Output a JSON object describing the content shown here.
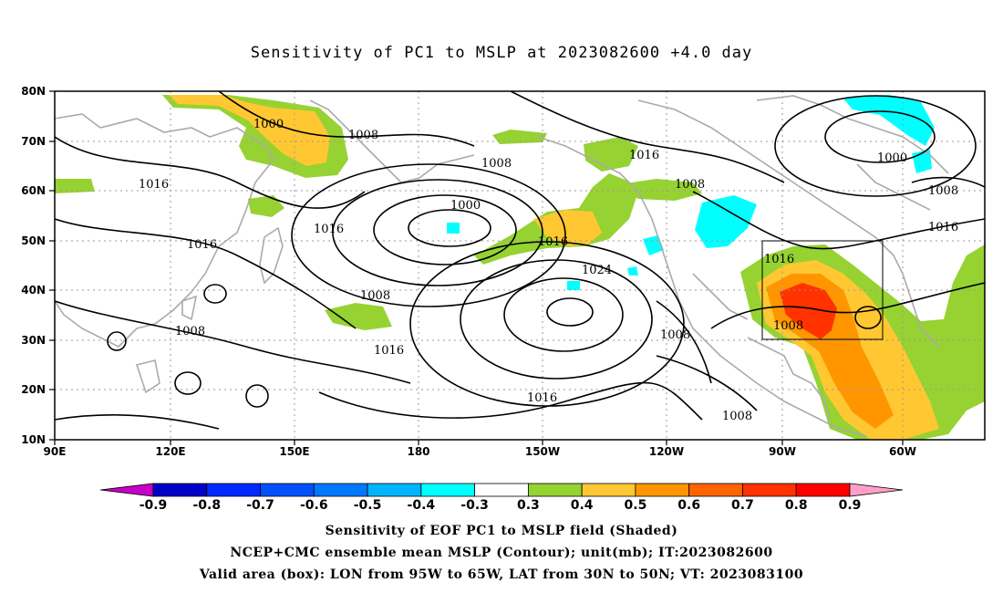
{
  "title": "Sensitivity of PC1 to MSLP at 2023082600 +4.0 day",
  "x_ticks": [
    "90E",
    "120E",
    "150E",
    "180",
    "150W",
    "120W",
    "90W",
    "60W"
  ],
  "y_ticks": [
    "80N",
    "70N",
    "60N",
    "50N",
    "40N",
    "30N",
    "20N",
    "10N"
  ],
  "contour_labels": [
    "1000",
    "1008",
    "1008",
    "1016",
    "1016",
    "1016",
    "1008",
    "1008",
    "1000",
    "1016",
    "1024",
    "1016",
    "1016",
    "1016",
    "1008",
    "1000",
    "1008",
    "1016",
    "1016",
    "1008",
    "1008",
    "1008"
  ],
  "colorbar": {
    "labels": [
      "-0.9",
      "-0.8",
      "-0.7",
      "-0.6",
      "-0.5",
      "-0.4",
      "-0.3",
      "0.3",
      "0.4",
      "0.5",
      "0.6",
      "0.7",
      "0.8",
      "0.9"
    ],
    "colors": [
      "#c800c8",
      "#0000c8",
      "#0028ff",
      "#0050ff",
      "#0078ff",
      "#00b4ff",
      "#00ffff",
      "#ffffff",
      "#96d232",
      "#ffc832",
      "#ff9600",
      "#ff6400",
      "#ff3200",
      "#ff0000",
      "#ffa0c8"
    ]
  },
  "shading_colors": {
    "cyan": "#00ffff",
    "green": "#96d232",
    "yellow": "#ffc832",
    "orange": "#ff9600",
    "red": "#ff3200"
  },
  "caption": [
    "Sensitivity of EOF PC1 to MSLP field (Shaded)",
    "NCEP+CMC ensemble mean MSLP (Contour); unit(mb); IT:2023082600",
    "Valid area (box): LON from 95W to 65W, LAT from 30N to 50N; VT: 2023083100"
  ]
}
